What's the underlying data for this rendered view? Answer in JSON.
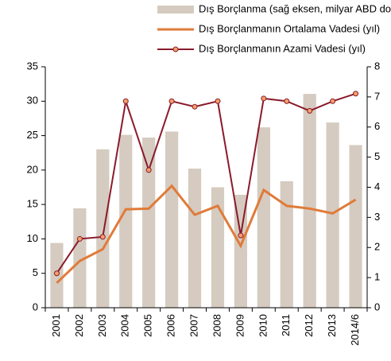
{
  "chart_data": {
    "type": "bar_line",
    "categories": [
      "2001",
      "2002",
      "2003",
      "2004",
      "2005",
      "2006",
      "2007",
      "2008",
      "2009",
      "2010",
      "2011",
      "2012",
      "2013",
      "2014/6"
    ],
    "series": [
      {
        "name": "Dış Borçlanma (sağ eksen, milyar ABD doları)*",
        "type": "bar",
        "axis": "y2",
        "color": "#d5cbc0",
        "values": [
          2.15,
          3.3,
          5.26,
          5.74,
          5.65,
          5.85,
          4.62,
          4.0,
          3.75,
          5.99,
          4.2,
          7.1,
          6.15,
          5.4
        ]
      },
      {
        "name": "Dış Borçlanmanın Ortalama Vadesi  (yıl)",
        "type": "line",
        "axis": "y",
        "color": "#e07b39",
        "values": [
          3.6,
          6.8,
          8.5,
          14.3,
          14.4,
          17.7,
          13.5,
          14.8,
          9.0,
          17.1,
          14.8,
          14.4,
          13.7,
          15.7
        ]
      },
      {
        "name": "Dış Borçlanmanın Azami Vadesi  (yıl)",
        "type": "line_marker",
        "axis": "y",
        "color": "#8b1a2b",
        "values": [
          5.0,
          10.0,
          10.3,
          30.0,
          20.0,
          30.0,
          29.2,
          30.0,
          10.5,
          30.4,
          30.0,
          28.6,
          30.0,
          31.1
        ]
      }
    ],
    "ylim": [
      0,
      35
    ],
    "yticks": [
      0,
      5,
      10,
      15,
      20,
      25,
      30,
      35
    ],
    "y2lim": [
      0,
      8
    ],
    "y2ticks": [
      0,
      1,
      2,
      3,
      4,
      5,
      6,
      7,
      8
    ],
    "grid": false,
    "legend": "top"
  }
}
